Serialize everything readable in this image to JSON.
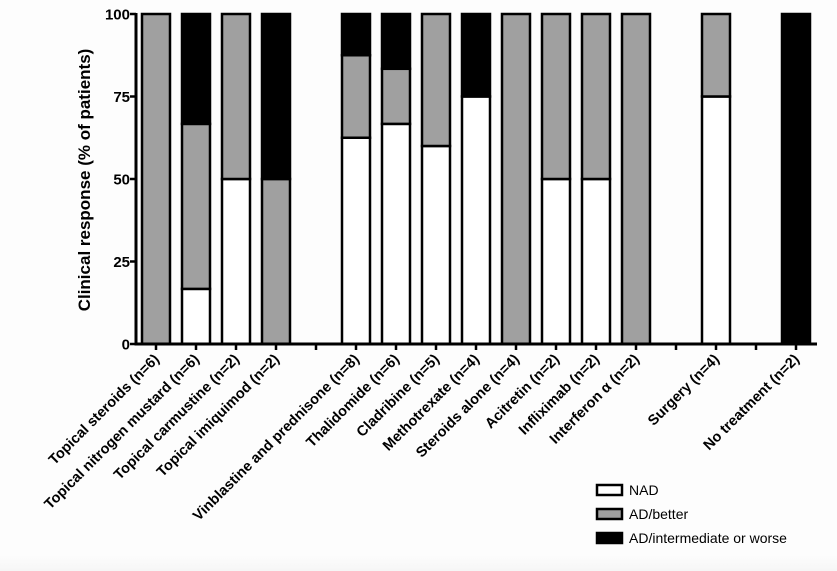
{
  "chart_data": {
    "type": "bar",
    "stacked": true,
    "title": "",
    "xlabel": "",
    "ylabel": "Clinical response (% of patients)",
    "ylim": [
      0,
      100
    ],
    "yticks": [
      "0",
      "25",
      "50",
      "75",
      "100"
    ],
    "ytick_values": [
      0,
      25,
      50,
      75,
      100
    ],
    "grid": false,
    "legend_position": "bottom-right",
    "groups": [
      [
        "Topical steroids (n=6)",
        "Topical nitrogen mustard (n=6)",
        "Topical carmustine (n=2)",
        "Topical imiquimod (n=2)"
      ],
      [
        "Vinblastine and prednisone (n=8)",
        "Thalidomide (n=6)",
        "Cladribine (n=5)",
        "Methotrexate (n=4)",
        "Steroids alone (n=4)",
        "Acitretin (n=2)",
        "Infliximab (n=2)",
        "Interferon α (n=2)"
      ],
      [
        "Surgery (n=4)"
      ],
      [
        "No treatment (n=2)"
      ]
    ],
    "categories": [
      "Topical steroids (n=6)",
      "Topical nitrogen mustard (n=6)",
      "Topical carmustine (n=2)",
      "Topical imiquimod (n=2)",
      "Vinblastine and prednisone (n=8)",
      "Thalidomide (n=6)",
      "Cladribine (n=5)",
      "Methotrexate (n=4)",
      "Steroids alone (n=4)",
      "Acitretin (n=2)",
      "Infliximab (n=2)",
      "Interferon α (n=2)",
      "Surgery (n=4)",
      "No treatment (n=2)"
    ],
    "series": [
      {
        "name": "NAD",
        "color": "#ffffff",
        "values": [
          0,
          16.7,
          50,
          0,
          62.5,
          66.7,
          60,
          75,
          0,
          50,
          50,
          0,
          75,
          0
        ]
      },
      {
        "name": "AD/better",
        "color": "#a0a0a0",
        "values": [
          100,
          50,
          50,
          50,
          25,
          16.7,
          40,
          0,
          100,
          50,
          50,
          100,
          25,
          0
        ]
      },
      {
        "name": "AD/intermediate or worse",
        "color": "#000000",
        "values": [
          0,
          33.3,
          0,
          50,
          12.5,
          16.6,
          0,
          25,
          0,
          0,
          0,
          0,
          0,
          100
        ]
      }
    ]
  }
}
